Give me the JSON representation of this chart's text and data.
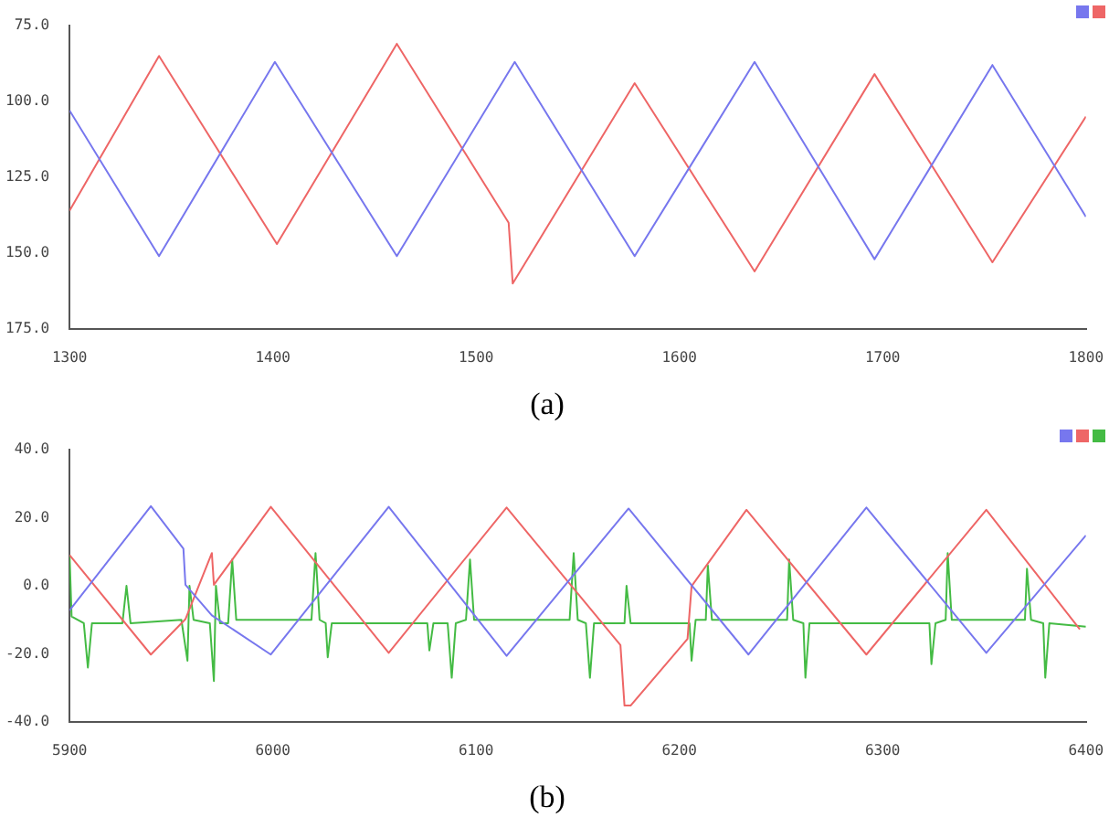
{
  "chart_data": [
    {
      "type": "line",
      "title": "(a)",
      "xlim": [
        1300,
        1800
      ],
      "xticks": [
        1300,
        1400,
        1500,
        1600,
        1700,
        1800
      ],
      "ylim": [
        175,
        75
      ],
      "yticks": [
        {
          "value": 75,
          "label": "75.0"
        },
        {
          "value": 100,
          "label": "100.0"
        },
        {
          "value": 125,
          "label": "125.0"
        },
        {
          "value": 150,
          "label": "150.0"
        },
        {
          "value": 175,
          "label": "175.0"
        }
      ],
      "marker": "none",
      "series": [
        {
          "color": "#7777ee",
          "x": [
            1300,
            1344,
            1401,
            1461,
            1519,
            1578,
            1637,
            1696,
            1754,
            1800
          ],
          "values": [
            103,
            151,
            87,
            151,
            87,
            151,
            87,
            152,
            88,
            138
          ]
        },
        {
          "color": "#ee6666",
          "x": [
            1300,
            1344,
            1402,
            1461,
            1516,
            1518,
            1578,
            1637,
            1696,
            1754,
            1800
          ],
          "values": [
            136,
            85,
            147,
            81,
            140,
            160,
            94,
            156,
            91,
            153,
            105
          ]
        }
      ]
    },
    {
      "type": "line",
      "title": "(b)",
      "xlim": [
        5900,
        6400
      ],
      "xticks": [
        5900,
        6000,
        6100,
        6200,
        6300,
        6400
      ],
      "ylim": [
        -40,
        40
      ],
      "yticks": [
        {
          "value": -40,
          "label": "-40.0"
        },
        {
          "value": -20,
          "label": "-20.0"
        },
        {
          "value": 0,
          "label": "0.0"
        },
        {
          "value": 20,
          "label": "20.0"
        },
        {
          "value": 40,
          "label": "40.0"
        }
      ],
      "marker": "none",
      "series": [
        {
          "color": "#7777ee",
          "x": [
            5900,
            5940,
            5956,
            5957,
            5970,
            5999,
            6057,
            6115,
            6175,
            6234,
            6292,
            6351,
            6400
          ],
          "values": [
            -7.2,
            23.4,
            10.9,
            0.3,
            -8.7,
            -20.2,
            23.2,
            -20.6,
            22.7,
            -20.2,
            23,
            -19.7,
            14.8
          ]
        },
        {
          "color": "#ee6666",
          "x": [
            5900,
            5940,
            5957,
            5970,
            5971,
            5999,
            6057,
            6115,
            6171,
            6173,
            6176,
            6204,
            6206,
            6233,
            6292,
            6351,
            6397
          ],
          "values": [
            9,
            -20.2,
            -9.8,
            9.6,
            0.3,
            23.2,
            -19.7,
            23,
            -17.4,
            -35.2,
            -35.2,
            -15.6,
            -0.1,
            22.3,
            -20.2,
            22.3,
            -12.8
          ]
        },
        {
          "color": "#44bb44",
          "x": [
            5900,
            5901,
            5907,
            5909,
            5911,
            5926,
            5928,
            5930,
            5955,
            5958,
            5959,
            5961,
            5969,
            5971,
            5972,
            5974,
            5978,
            5980,
            5982,
            5995,
            6000,
            6019,
            6021,
            6023,
            6026,
            6027,
            6029,
            6049,
            6076,
            6077,
            6079,
            6086,
            6088,
            6090,
            6095,
            6097,
            6099,
            6130,
            6146,
            6148,
            6150,
            6154,
            6156,
            6158,
            6173,
            6174,
            6176,
            6200,
            6205,
            6206,
            6208,
            6213,
            6214,
            6216,
            6240,
            6253,
            6254,
            6256,
            6261,
            6262,
            6264,
            6300,
            6323,
            6324,
            6326,
            6331,
            6332,
            6334,
            6360,
            6370,
            6371,
            6373,
            6379,
            6380,
            6382,
            6400
          ],
          "values": [
            9,
            -9,
            -11,
            -24,
            -11,
            -11,
            0,
            -11,
            -10,
            -22,
            0,
            -10,
            -11,
            -28,
            0,
            -11,
            -11,
            7.7,
            -10,
            -10,
            -10,
            -10,
            9.6,
            -10,
            -11,
            -21,
            -11,
            -11,
            -11,
            -19,
            -11,
            -11,
            -27,
            -11,
            -10,
            7.7,
            -10,
            -10,
            -10,
            9.6,
            -10,
            -11,
            -27,
            -11,
            -11,
            0,
            -11,
            -11,
            -11,
            -22,
            -10,
            -10,
            6,
            -10,
            -10,
            -10,
            7.7,
            -10,
            -11,
            -27,
            -11,
            -11,
            -11,
            -23,
            -11,
            -10,
            9.6,
            -10,
            -10,
            -10,
            5,
            -10,
            -11,
            -27,
            -11,
            -12
          ]
        }
      ]
    }
  ]
}
